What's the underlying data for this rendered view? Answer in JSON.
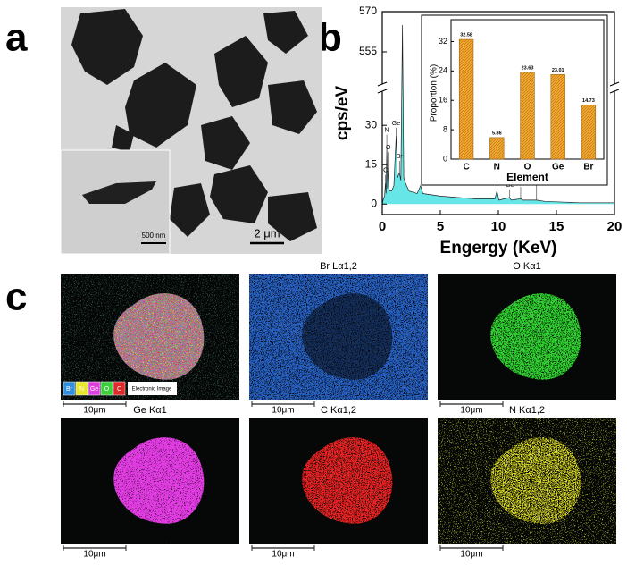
{
  "figure": {
    "panel_labels": [
      "a",
      "b",
      "c"
    ]
  },
  "tem": {
    "scale_bar": "2 μm",
    "inset_scale_bar": "500 nm"
  },
  "chart_data": [
    {
      "type": "area",
      "xlabel": "Engergy (KeV)",
      "ylabel": "cps/eV",
      "color": "#66e6e6",
      "x": [
        0,
        0.1,
        0.2,
        0.28,
        0.33,
        0.39,
        0.45,
        0.52,
        0.6,
        0.8,
        1.0,
        1.19,
        1.3,
        1.48,
        1.6,
        1.74,
        1.85,
        2.0,
        2.3,
        3.0,
        3.3,
        3.5,
        5,
        8,
        9.7,
        9.88,
        10.05,
        10.98,
        11.1,
        11.92,
        12.1,
        13.29,
        14,
        17,
        20
      ],
      "values": [
        0,
        2,
        3,
        8,
        4,
        22,
        6,
        14,
        5,
        5,
        7,
        26,
        10,
        12,
        9,
        565,
        10,
        8,
        5,
        4,
        7,
        4,
        3,
        2,
        2,
        5,
        1.5,
        2.5,
        1.5,
        2,
        1.5,
        1.5,
        1,
        0.5,
        0.5
      ],
      "xlim": [
        0,
        20
      ],
      "xticks": [
        0,
        5,
        10,
        15,
        20
      ],
      "ylim": [
        -4,
        570
      ],
      "axis_break": [
        43,
        543
      ],
      "yticks": [
        0,
        15,
        30,
        555,
        570
      ],
      "annotations": [
        {
          "text": "C",
          "x": 0.28
        },
        {
          "text": "N",
          "x": 0.39
        },
        {
          "text": "O",
          "x": 0.52
        },
        {
          "text": "Ge",
          "x": 1.19
        },
        {
          "text": "Br",
          "x": 1.48
        },
        {
          "text": "Ge",
          "x": 9.88
        },
        {
          "text": "Ge",
          "x": 10.98
        },
        {
          "text": "Br",
          "x": 11.92
        },
        {
          "text": "Br",
          "x": 13.29
        }
      ]
    },
    {
      "type": "bar",
      "xlabel": "Element",
      "ylabel": "Proportion (%)",
      "color": "#f0a830",
      "categories": [
        "C",
        "N",
        "O",
        "Ge",
        "Br"
      ],
      "values": [
        32.58,
        5.86,
        23.63,
        23.01,
        14.73
      ],
      "ylim": [
        0,
        36
      ],
      "yticks": [
        0,
        8,
        16,
        24,
        32
      ]
    }
  ],
  "mapping": {
    "legend": [
      {
        "text": "Br",
        "color": "#2f8fe0"
      },
      {
        "text": "N",
        "color": "#e6e62a"
      },
      {
        "text": "Ge",
        "color": "#e040e0"
      },
      {
        "text": "O",
        "color": "#3ccf3c"
      },
      {
        "text": "C",
        "color": "#e02a2a"
      }
    ],
    "legend_caption": "Electronic Image",
    "panels": [
      {
        "scale_bar": "10μm",
        "color": "#3a6a5a"
      },
      {
        "title": "Br Lα1,2",
        "scale_bar": "10μm",
        "color": "#2a6ad8"
      },
      {
        "title": "O Kα1",
        "scale_bar": "10μm",
        "color": "#2fd02f"
      },
      {
        "title": "Ge Kα1",
        "scale_bar": "10μm",
        "color": "#e03ae0"
      },
      {
        "title": "C Kα1,2",
        "scale_bar": "10μm",
        "color": "#e82020"
      },
      {
        "title": "N Kα1,2",
        "scale_bar": "10μm",
        "color": "#d8d820"
      }
    ]
  }
}
